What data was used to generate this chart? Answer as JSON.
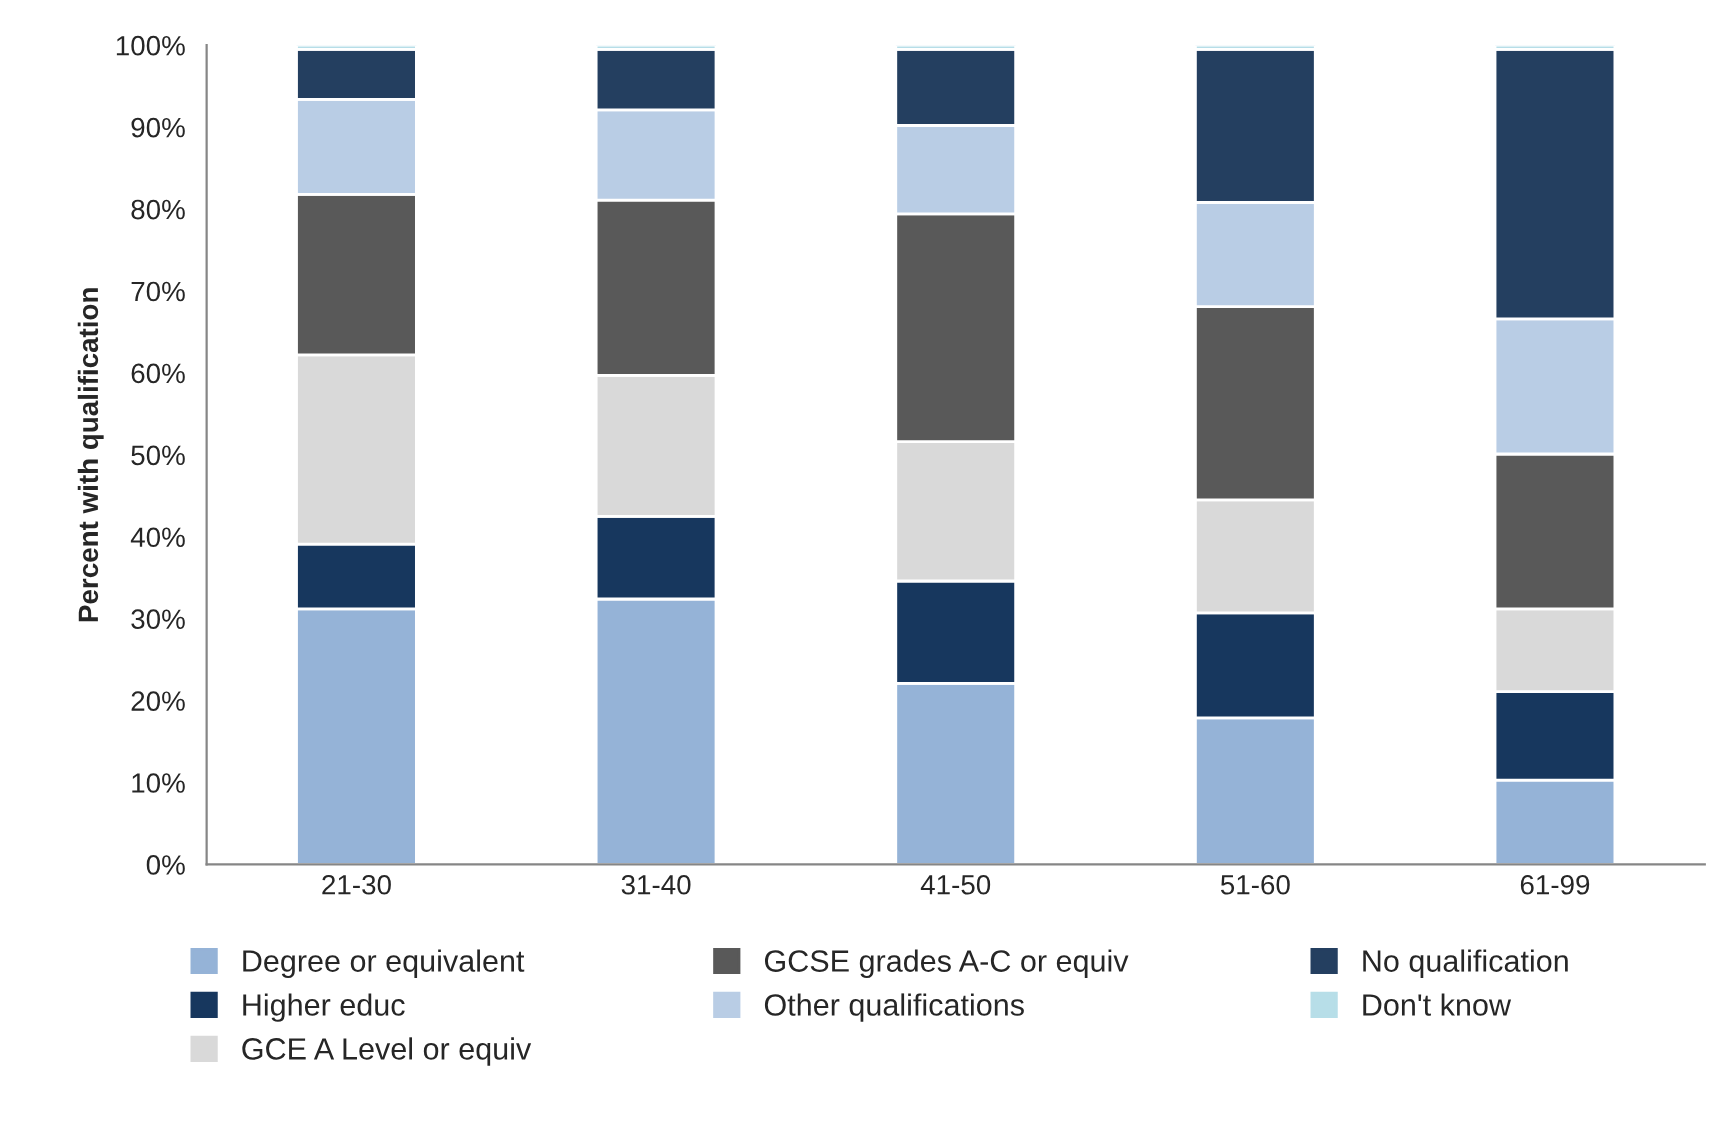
{
  "chart_data": {
    "type": "bar",
    "stacked": true,
    "ylabel": "Percent with qualification",
    "categories": [
      "21-30",
      "31-40",
      "41-50",
      "51-60",
      "61-99"
    ],
    "series": [
      {
        "name": "Degree or equivalent",
        "color": "#95b3d7",
        "values": [
          31.2,
          32.4,
          22.1,
          17.9,
          10.3
        ]
      },
      {
        "name": "Higher educ",
        "color": "#17375e",
        "values": [
          7.9,
          10.1,
          12.5,
          12.8,
          10.8
        ]
      },
      {
        "name": "GCE A Level or equiv",
        "color": "#d9d9d9",
        "values": [
          23.1,
          17.2,
          17.0,
          13.8,
          10.1
        ]
      },
      {
        "name": "GCSE grades A-C or equiv",
        "color": "#595959",
        "values": [
          19.6,
          21.4,
          27.8,
          23.6,
          18.9
        ]
      },
      {
        "name": "Other qualifications",
        "color": "#b9cde5",
        "values": [
          11.6,
          11.0,
          10.8,
          12.7,
          16.5
        ]
      },
      {
        "name": "No qualification",
        "color": "#243f60",
        "values": [
          6.1,
          7.4,
          9.3,
          18.7,
          32.9
        ]
      },
      {
        "name": "Don't know",
        "color": "#b7dee8",
        "values": [
          0.5,
          0.5,
          0.5,
          0.5,
          0.5
        ]
      }
    ],
    "ylim": [
      0,
      100
    ],
    "yticks": [
      {
        "value": 0,
        "label": "0%"
      },
      {
        "value": 10,
        "label": "10%"
      },
      {
        "value": 20,
        "label": "20%"
      },
      {
        "value": 30,
        "label": "30%"
      },
      {
        "value": 40,
        "label": "40%"
      },
      {
        "value": 50,
        "label": "50%"
      },
      {
        "value": 60,
        "label": "60%"
      },
      {
        "value": 70,
        "label": "70%"
      },
      {
        "value": 80,
        "label": "80%"
      },
      {
        "value": 90,
        "label": "90%"
      },
      {
        "value": 100,
        "label": "100%"
      }
    ],
    "grid": false,
    "legend": "bottom"
  }
}
